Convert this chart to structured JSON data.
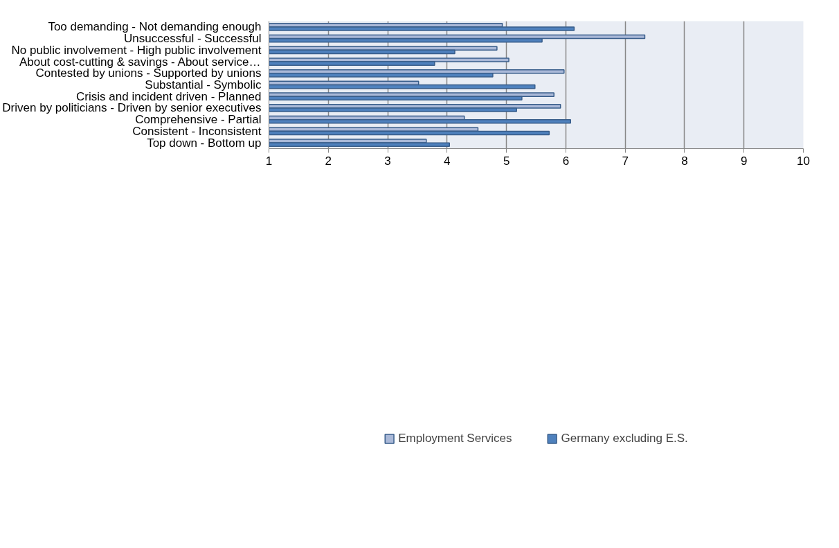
{
  "chart_data": {
    "type": "bar",
    "orientation": "horizontal",
    "categories": [
      "Too demanding - Not demanding enough",
      "Unsuccessful - Successful",
      "No public involvement - High public involvement",
      "About cost-cutting & savings - About service…",
      "Contested by unions - Supported by unions",
      "Substantial - Symbolic",
      "Crisis and incident driven - Planned",
      "Driven by politicians - Driven by senior executives",
      "Comprehensive - Partial",
      "Consistent - Inconsistent",
      "Top down - Bottom up"
    ],
    "series": [
      {
        "name": "Employment Services",
        "color": "#aab9d8",
        "values": [
          4.93,
          7.33,
          4.84,
          5.04,
          5.97,
          3.52,
          5.8,
          5.91,
          4.29,
          4.52,
          3.65
        ]
      },
      {
        "name": "Germany excluding E.S.",
        "color": "#4f81bd",
        "values": [
          6.14,
          5.6,
          4.13,
          3.79,
          4.77,
          5.48,
          5.26,
          5.17,
          6.08,
          5.72,
          4.04
        ]
      }
    ],
    "xlim": [
      1,
      10
    ],
    "xticks": [
      1,
      2,
      3,
      4,
      5,
      6,
      7,
      8,
      9,
      10
    ],
    "grid": "x",
    "legend": "bottom"
  }
}
